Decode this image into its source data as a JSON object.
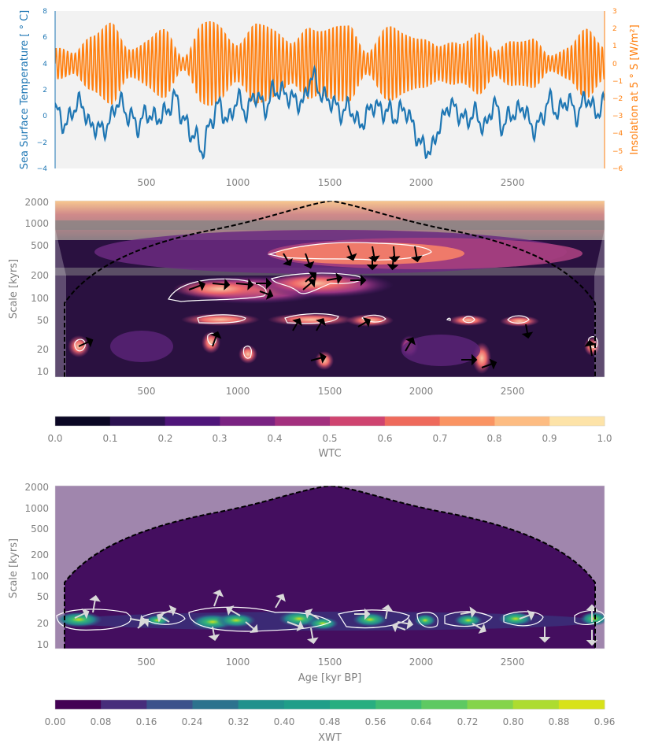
{
  "colors": {
    "sst": "#1f77b4",
    "insolation": "#ff7f0e",
    "tick_text": "#808080",
    "panel_bg": "#f2f2f2",
    "coi": "#000000"
  },
  "chart_data": [
    {
      "type": "line",
      "x_range": [
        0,
        3000
      ],
      "x_ticks": [
        500,
        1000,
        1500,
        2000,
        2500
      ],
      "left_axis": {
        "label": "Sea Surface Temperature [$^\\circ$C]",
        "display_label": "Sea Surface Temperature [ ° C]",
        "ylim": [
          -4,
          8
        ],
        "ticks": [
          -4,
          -2,
          0,
          2,
          4,
          6,
          8
        ]
      },
      "right_axis": {
        "label": "Insolation at 5$^\\circ$S [$W/m^2$]",
        "display_label": "Insolation at 5 ° S [W/m²]",
        "ylim": [
          -6,
          3
        ],
        "ticks": [
          -6,
          -5,
          -4,
          -3,
          -2,
          -1,
          0,
          1,
          2,
          3
        ]
      },
      "series": [
        {
          "name": "Sea Surface Temperature",
          "axis": "left",
          "x": [
            0,
            50,
            100,
            150,
            200,
            250,
            300,
            350,
            400,
            450,
            500,
            550,
            600,
            650,
            700,
            750,
            800,
            850,
            900,
            950,
            1000,
            1050,
            1100,
            1150,
            1200,
            1250,
            1300,
            1350,
            1400,
            1450,
            1500,
            1550,
            1600,
            1650,
            1700,
            1750,
            1800,
            1850,
            1900,
            1950,
            2000,
            2050,
            2100,
            2150,
            2200,
            2250,
            2300,
            2350,
            2400,
            2450,
            2500,
            2550,
            2600,
            2650,
            2700,
            2750,
            2800,
            2850,
            2900,
            2950,
            3000
          ],
          "values": [
            0.2,
            -0.6,
            0.5,
            0.8,
            -0.8,
            -1.2,
            -0.2,
            1.0,
            0.3,
            -1.0,
            0.5,
            -0.5,
            0.4,
            1.2,
            0.0,
            -1.5,
            -2.5,
            -0.5,
            0.8,
            -0.3,
            1.2,
            0.5,
            1.5,
            0.8,
            1.8,
            2.0,
            1.0,
            1.2,
            2.8,
            2.0,
            1.0,
            0.5,
            0.6,
            -0.5,
            0.0,
            0.8,
            0.5,
            -0.2,
            0.8,
            -0.8,
            -2.0,
            -3.0,
            -0.5,
            0.6,
            0.5,
            -0.5,
            0.3,
            -1.0,
            1.0,
            -0.8,
            0.2,
            0.8,
            -1.0,
            -0.3,
            1.0,
            0.5,
            1.0,
            0.3,
            1.2,
            0.5,
            0.8
          ]
        },
        {
          "name": "Insolation at 5°S",
          "axis": "right",
          "shape": "precession-band oscillation, period ~21 kyr",
          "period_kyr": 21,
          "envelope_x": [
            0,
            100,
            200,
            300,
            400,
            500,
            600,
            700,
            800,
            900,
            1000,
            1100,
            1200,
            1300,
            1400,
            1500,
            1600,
            1700,
            1800,
            1900,
            2000,
            2100,
            2200,
            2300,
            2400,
            2500,
            2600,
            2700,
            2800,
            2900,
            3000
          ],
          "envelope_amp": [
            1.0,
            0.6,
            2.2,
            2.4,
            1.0,
            1.6,
            2.0,
            0.5,
            2.4,
            2.5,
            1.4,
            2.3,
            2.6,
            1.3,
            2.2,
            2.8,
            2.2,
            0.8,
            2.4,
            1.8,
            2.0,
            1.0,
            1.4,
            2.2,
            0.7,
            1.8,
            1.5,
            0.5,
            1.2,
            2.0,
            1.2
          ]
        }
      ]
    },
    {
      "type": "heatmap",
      "x_range": [
        0,
        3000
      ],
      "x_ticks": [
        500,
        1000,
        1500,
        2000,
        2500
      ],
      "y_scale": "log",
      "ylim": [
        8,
        2100
      ],
      "ylabel": "Scale [kyrs]",
      "y_ticks": [
        10,
        20,
        50,
        100,
        200,
        500,
        1000,
        2000
      ],
      "colorbar": {
        "label": "WTC",
        "ticks": [
          0.0,
          0.1,
          0.2,
          0.3,
          0.4,
          0.5,
          0.6,
          0.7,
          0.8,
          0.9,
          1.0
        ]
      },
      "coi": "dashed black cone of influence",
      "significant_regions": [
        {
          "x": [
            1180,
            1980
          ],
          "scale": [
            380,
            560
          ]
        },
        {
          "x": [
            600,
            1050
          ],
          "scale": [
            110,
            190
          ]
        },
        {
          "x": [
            1250,
            1750
          ],
          "scale": [
            120,
            190
          ]
        },
        {
          "x": [
            900,
            1050
          ],
          "scale": [
            45,
            58
          ]
        },
        {
          "x": [
            1280,
            1580
          ],
          "scale": [
            45,
            58
          ]
        },
        {
          "x": [
            1680,
            1790
          ],
          "scale": [
            45,
            58
          ]
        },
        {
          "x": [
            2500,
            2620
          ],
          "scale": [
            45,
            58
          ]
        },
        {
          "x": [
            100,
            150
          ],
          "scale": [
            17,
            25
          ]
        }
      ]
    },
    {
      "type": "heatmap",
      "x_range": [
        0,
        3000
      ],
      "x_ticks": [
        500,
        1000,
        1500,
        2000,
        2500
      ],
      "xlabel": "Age [kyr BP]",
      "y_scale": "log",
      "ylim": [
        8,
        2100
      ],
      "ylabel": "Scale [kyrs]",
      "y_ticks": [
        10,
        20,
        50,
        100,
        200,
        500,
        1000,
        2000
      ],
      "colorbar": {
        "label": "XWT",
        "ticks": [
          0.0,
          0.08,
          0.16,
          0.24,
          0.32,
          0.4,
          0.48,
          0.56,
          0.64,
          0.72,
          0.8,
          0.88,
          0.96
        ]
      },
      "coi": "dashed black cone of influence",
      "significant_band_scale": [
        17,
        25
      ],
      "significant_band_x": [
        50,
        2950
      ]
    }
  ],
  "panel1": {
    "x_tick_labels": [
      "500",
      "1000",
      "1500",
      "2000",
      "2500"
    ],
    "left_tick_labels": [
      "8",
      "6",
      "4",
      "2",
      "0",
      "−2",
      "−4"
    ],
    "right_tick_labels": [
      "3",
      "2",
      "1",
      "0",
      "−1",
      "−2",
      "−3",
      "−4",
      "−5",
      "−6"
    ],
    "left_label": "Sea Surface Temperature [ ° C]",
    "right_label": "Insolation at 5 ° S [W/m²]"
  },
  "panel2": {
    "x_tick_labels": [
      "500",
      "1000",
      "1500",
      "2000",
      "2500"
    ],
    "y_tick_labels": [
      "2000",
      "1000",
      "500",
      "200",
      "100",
      "50",
      "20",
      "10"
    ],
    "y_label": "Scale [kyrs]"
  },
  "colorbar1": {
    "tick_labels": [
      "0.0",
      "0.1",
      "0.2",
      "0.3",
      "0.4",
      "0.5",
      "0.6",
      "0.7",
      "0.8",
      "0.9",
      "1.0"
    ],
    "label": "WTC"
  },
  "panel3": {
    "x_tick_labels": [
      "500",
      "1000",
      "1500",
      "2000",
      "2500"
    ],
    "y_tick_labels": [
      "2000",
      "1000",
      "500",
      "200",
      "100",
      "50",
      "20",
      "10"
    ],
    "y_label": "Scale [kyrs]",
    "x_label": "Age [kyr BP]"
  },
  "colorbar2": {
    "tick_labels": [
      "0.00",
      "0.08",
      "0.16",
      "0.24",
      "0.32",
      "0.40",
      "0.48",
      "0.56",
      "0.64",
      "0.72",
      "0.80",
      "0.88",
      "0.96"
    ],
    "label": "XWT"
  }
}
